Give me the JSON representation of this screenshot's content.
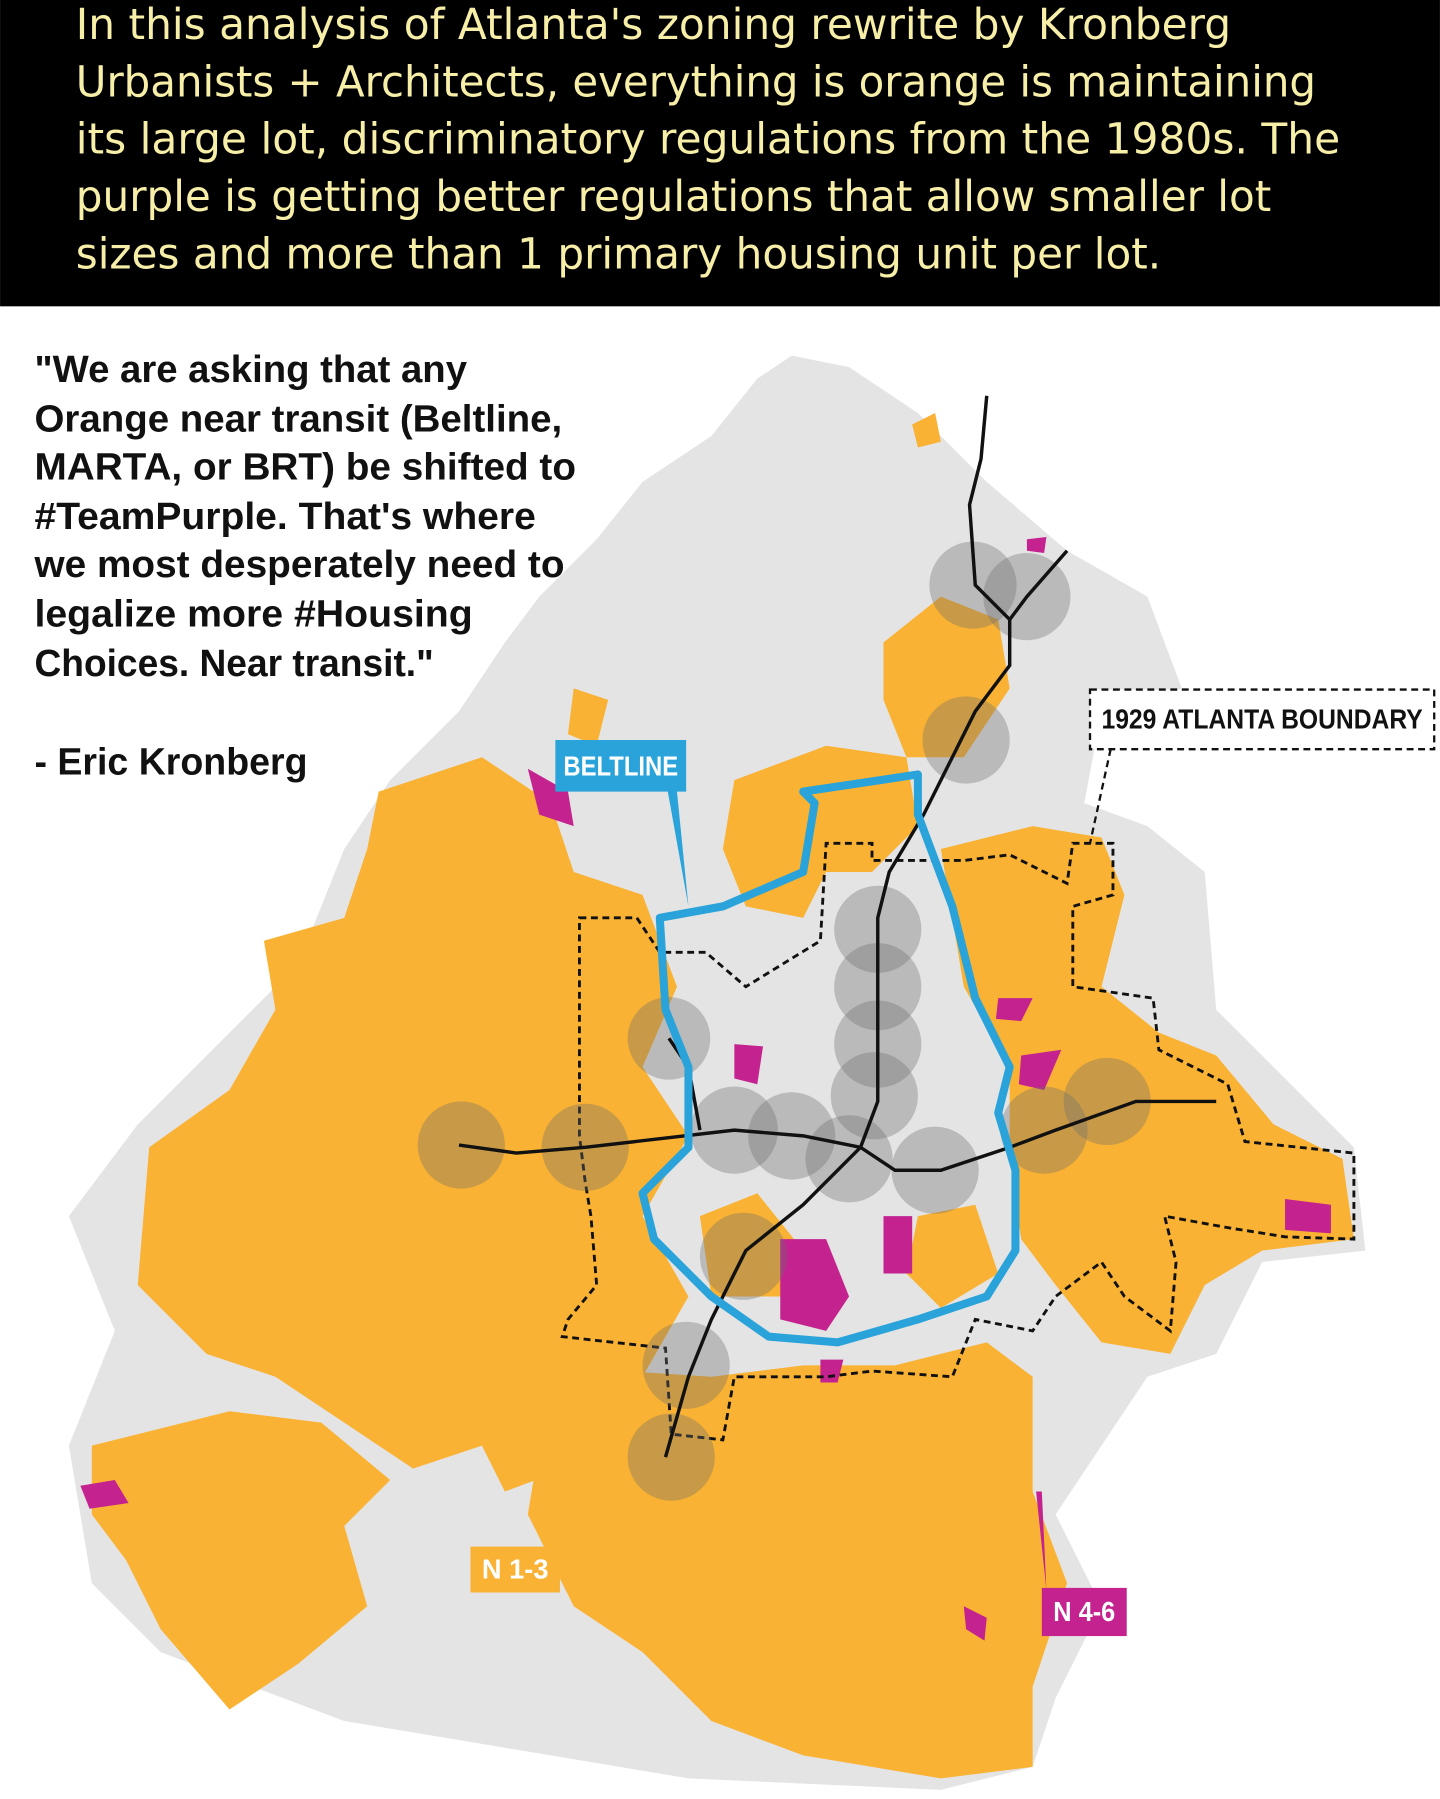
{
  "header": {
    "lines": [
      "In this analysis of Atlanta's zoning rewrite by Kronberg",
      "Urbanists + Architects, everything is orange is maintaining",
      "its large lot, discriminatory regulations from the 1980s. The",
      "purple is getting better regulations that allow smaller lot",
      "sizes and more than 1 primary housing unit per lot."
    ]
  },
  "quote": {
    "lines": [
      "\"We are asking that any",
      "Orange near transit (Beltline,",
      "MARTA, or BRT) be shifted to",
      "#TeamPurple. That's where",
      "we most desperately need to",
      "legalize more #Housing",
      "Choices. Near transit.\""
    ],
    "attribution": "- Eric Kronberg"
  },
  "map": {
    "labels": {
      "beltline": "BELTLINE",
      "boundary": "1929 ATLANTA BOUNDARY",
      "n13": "N 1-3",
      "n46": "N 4-6"
    }
  }
}
